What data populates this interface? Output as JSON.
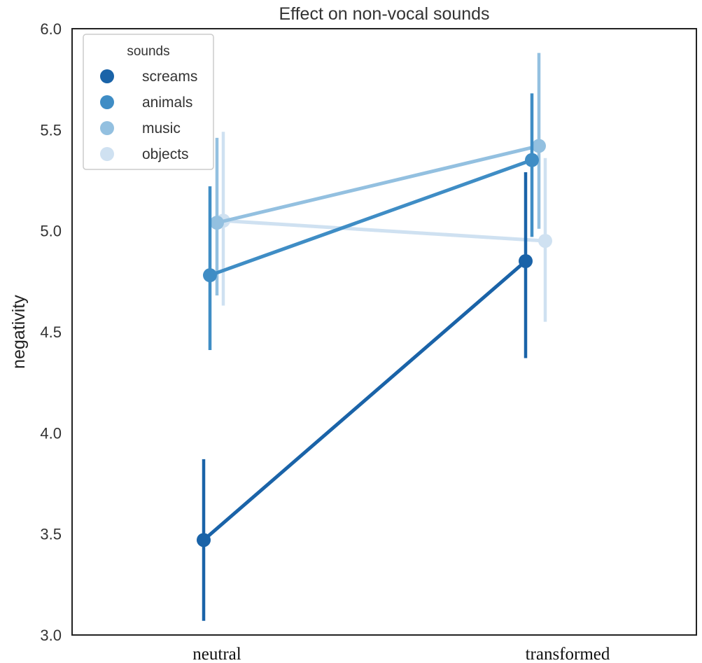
{
  "chart_data": {
    "type": "line",
    "title": "Effect on non-vocal sounds",
    "xlabel": "",
    "ylabel": "negativity",
    "categories": [
      "neutral",
      "transformed"
    ],
    "ylim": [
      3.0,
      6.0
    ],
    "yticks": [
      "3.0",
      "3.5",
      "4.0",
      "4.5",
      "5.0",
      "5.5",
      "6.0"
    ],
    "grid": false,
    "legend": {
      "title": "sounds",
      "placement": "top-left"
    },
    "series": [
      {
        "name": "screams",
        "color": "#1a63a8",
        "values": [
          3.47,
          4.85
        ],
        "ci_low": [
          3.07,
          4.37
        ],
        "ci_high": [
          3.87,
          5.29
        ]
      },
      {
        "name": "animals",
        "color": "#3f8dc5",
        "values": [
          4.78,
          5.35
        ],
        "ci_low": [
          4.41,
          4.97
        ],
        "ci_high": [
          5.22,
          5.68
        ]
      },
      {
        "name": "music",
        "color": "#93c0e0",
        "values": [
          5.04,
          5.42
        ],
        "ci_low": [
          4.68,
          5.01
        ],
        "ci_high": [
          5.46,
          5.88
        ]
      },
      {
        "name": "objects",
        "color": "#cfe1f1",
        "values": [
          5.05,
          4.95
        ],
        "ci_low": [
          4.63,
          4.55
        ],
        "ci_high": [
          5.49,
          5.36
        ]
      }
    ]
  }
}
